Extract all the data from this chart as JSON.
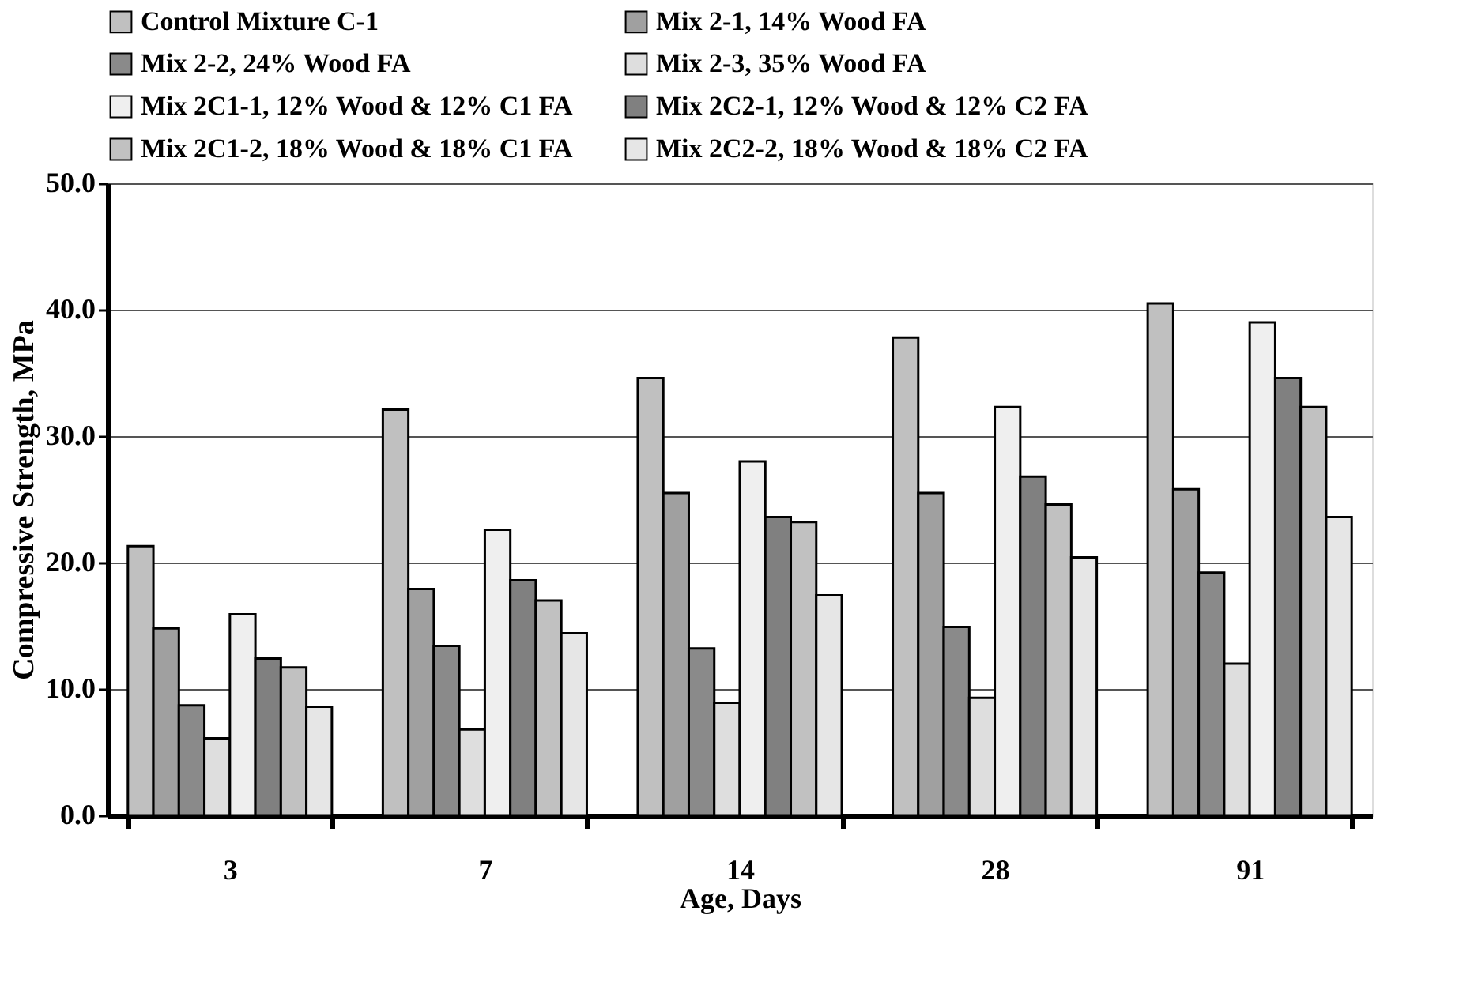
{
  "chart_data": {
    "type": "bar",
    "xlabel": "Age, Days",
    "ylabel": "Compressive Strength, MPa",
    "categories": [
      "3",
      "7",
      "14",
      "28",
      "91"
    ],
    "series": [
      {
        "name": "Control Mixture C-1",
        "color": "#c0c0c0",
        "values": [
          21.3,
          32.1,
          34.6,
          37.8,
          40.5
        ]
      },
      {
        "name": "Mix 2-1, 14% Wood FA",
        "color": "#a0a0a0",
        "values": [
          14.8,
          17.9,
          25.5,
          25.5,
          25.8
        ]
      },
      {
        "name": "Mix 2-2, 24% Wood FA",
        "color": "#8a8a8a",
        "values": [
          8.7,
          13.4,
          13.2,
          14.9,
          19.2
        ]
      },
      {
        "name": "Mix 2-3, 35% Wood FA",
        "color": "#dedede",
        "values": [
          6.1,
          6.8,
          8.9,
          9.3,
          12.0
        ]
      },
      {
        "name": "Mix 2C1-1, 12% Wood & 12% C1 FA",
        "color": "#efefef",
        "values": [
          15.9,
          22.6,
          28.0,
          32.3,
          39.0
        ]
      },
      {
        "name": "Mix 2C2-1, 12% Wood & 12% C2 FA",
        "color": "#808080",
        "values": [
          12.4,
          18.6,
          23.6,
          26.8,
          34.6
        ]
      },
      {
        "name": "Mix 2C1-2, 18% Wood & 18% C1 FA",
        "color": "#c1c1c1",
        "values": [
          11.7,
          17.0,
          23.2,
          24.6,
          32.3
        ]
      },
      {
        "name": "Mix 2C2-2, 18% Wood & 18% C2 FA",
        "color": "#e6e6e6",
        "values": [
          8.6,
          14.4,
          17.4,
          20.4,
          23.6
        ]
      }
    ],
    "ylim": [
      0,
      50
    ],
    "yticks": [
      {
        "value": 0,
        "label": "0.0"
      },
      {
        "value": 10,
        "label": "10.0"
      },
      {
        "value": 20,
        "label": "20.0"
      },
      {
        "value": 30,
        "label": "30.0"
      },
      {
        "value": 40,
        "label": "40.0"
      },
      {
        "value": 50,
        "label": "50.0"
      }
    ],
    "grid": "y",
    "legend": "top"
  }
}
